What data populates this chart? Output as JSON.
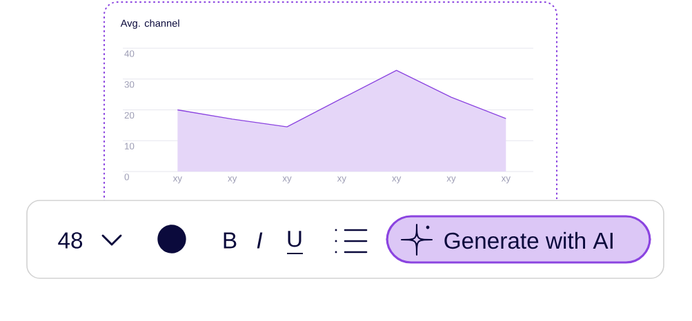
{
  "chart_data": {
    "type": "area",
    "title": "Avg. channel",
    "categories": [
      "xy",
      "xy",
      "xy",
      "xy",
      "xy",
      "xy",
      "xy"
    ],
    "values": [
      20,
      17,
      14.5,
      23.7,
      32.8,
      24.1,
      17.2
    ],
    "color": "#8b44e0",
    "ylim": [
      0,
      40
    ],
    "yticks": [
      0,
      10,
      20,
      30,
      40
    ],
    "grid": "y",
    "annotations": [
      "48",
      "B",
      "I",
      "U",
      "Generate with AI"
    ]
  }
}
